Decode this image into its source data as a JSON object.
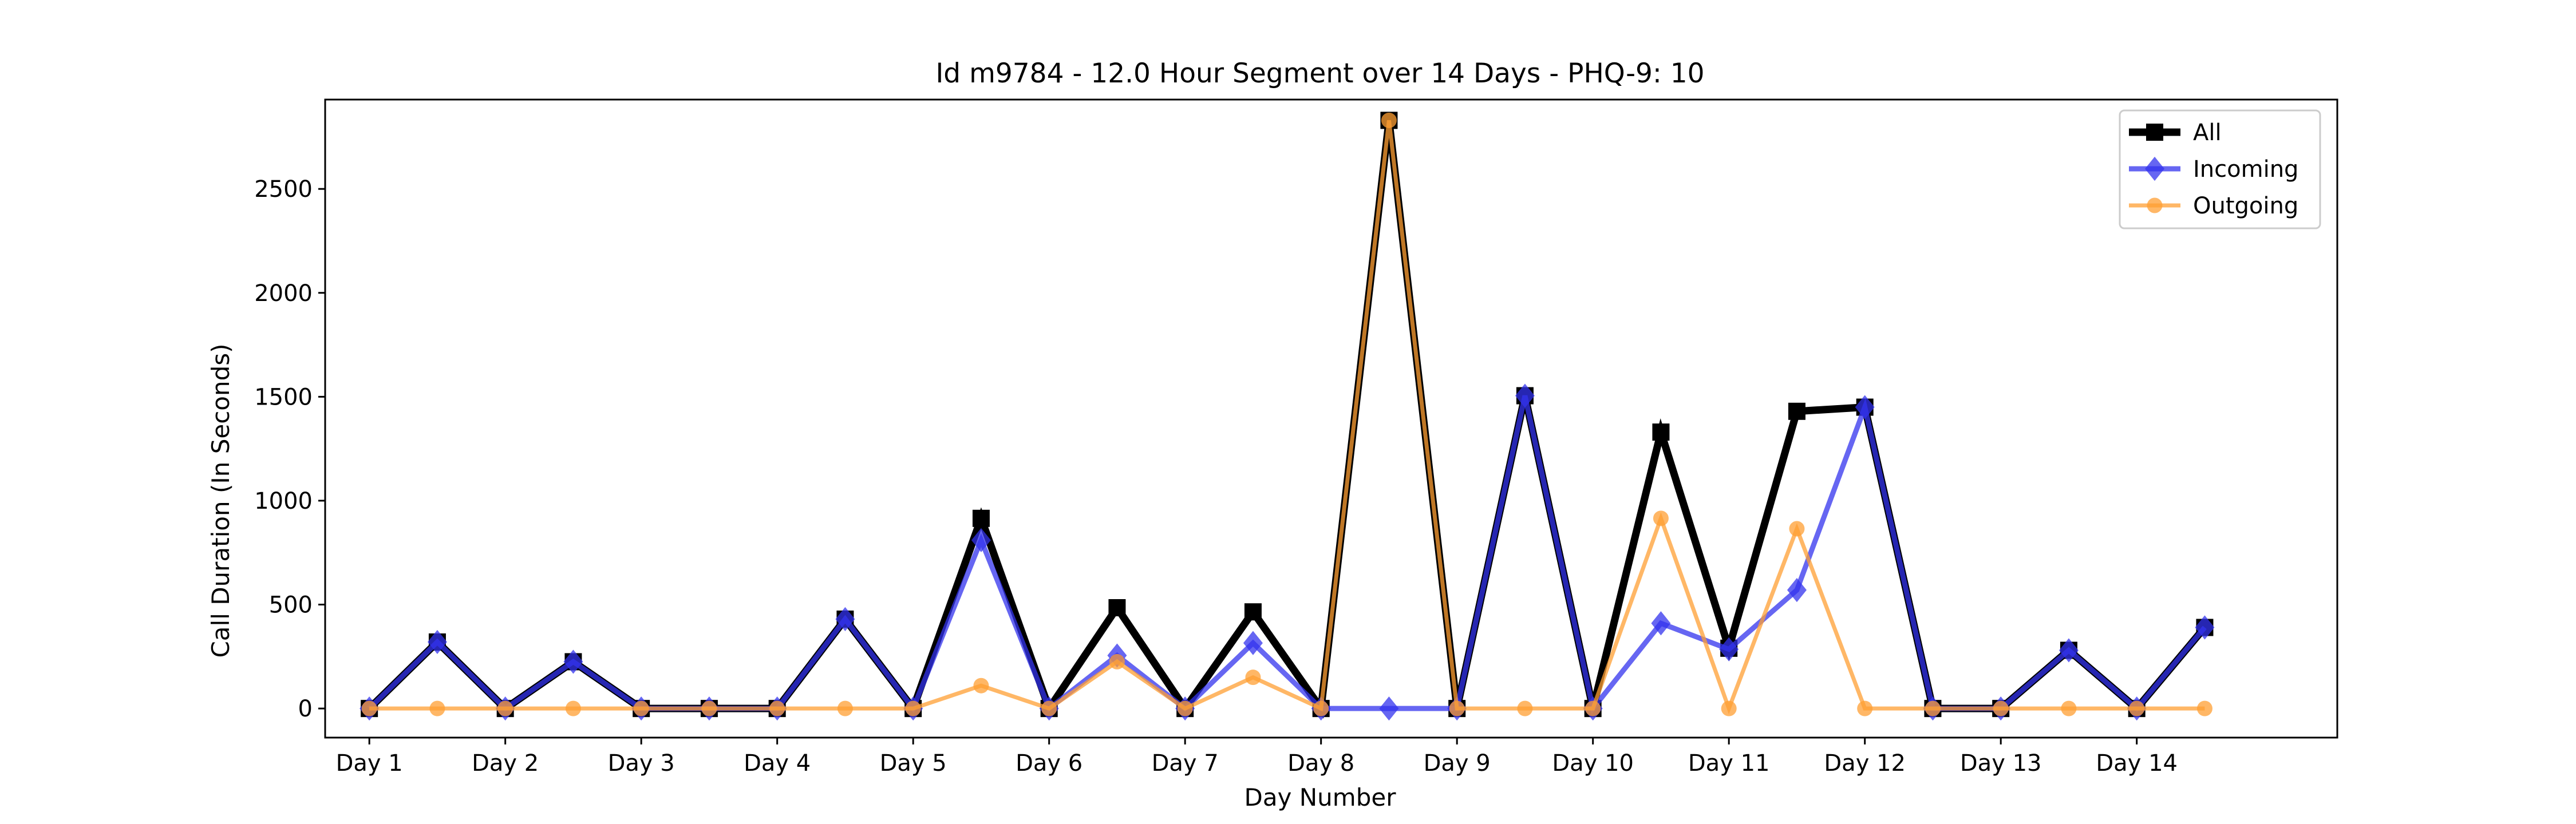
{
  "chart_data": {
    "type": "line",
    "title": "Id m9784 - 12.0 Hour Segment over 14 Days - PHQ-9: 10",
    "xlabel": "Day Number",
    "ylabel": "Call Duration (In Seconds)",
    "xlim": [
      -0.65,
      28.95
    ],
    "ylim": [
      -140,
      2930
    ],
    "categories": [
      "Day 1",
      "Day 2",
      "Day 3",
      "Day 4",
      "Day 5",
      "Day 6",
      "Day 7",
      "Day 8",
      "Day 9",
      "Day 10",
      "Day 11",
      "Day 12",
      "Day 13",
      "Day 14"
    ],
    "category_positions": [
      0,
      2,
      4,
      6,
      8,
      10,
      12,
      14,
      16,
      18,
      20,
      22,
      24,
      26
    ],
    "y_ticks": [
      0,
      500,
      1000,
      1500,
      2000,
      2500
    ],
    "x": [
      0,
      1,
      2,
      3,
      4,
      5,
      6,
      7,
      8,
      9,
      10,
      11,
      12,
      13,
      14,
      15,
      16,
      17,
      18,
      19,
      20,
      21,
      22,
      23,
      24,
      25,
      26,
      27
    ],
    "series": [
      {
        "name": "All",
        "color": "#000000",
        "marker": "square",
        "values": [
          0,
          320,
          0,
          225,
          0,
          0,
          0,
          430,
          0,
          915,
          0,
          485,
          0,
          465,
          0,
          2830,
          0,
          1505,
          0,
          1330,
          290,
          1430,
          1450,
          0,
          0,
          280,
          0,
          390
        ]
      },
      {
        "name": "Incoming",
        "color": "#3333ee",
        "marker": "diamond",
        "values": [
          0,
          320,
          0,
          225,
          0,
          0,
          0,
          430,
          0,
          810,
          0,
          255,
          0,
          315,
          0,
          0,
          0,
          1505,
          0,
          410,
          285,
          570,
          1450,
          0,
          0,
          280,
          0,
          390
        ]
      },
      {
        "name": "Outgoing",
        "color": "#ff9f33",
        "marker": "circle",
        "values": [
          0,
          0,
          0,
          0,
          0,
          0,
          0,
          0,
          0,
          110,
          0,
          225,
          0,
          150,
          0,
          2830,
          0,
          0,
          0,
          915,
          0,
          865,
          0,
          0,
          0,
          0,
          0,
          0
        ]
      }
    ],
    "legend": {
      "position": "top-right",
      "entries": [
        "All",
        "Incoming",
        "Outgoing"
      ]
    }
  }
}
